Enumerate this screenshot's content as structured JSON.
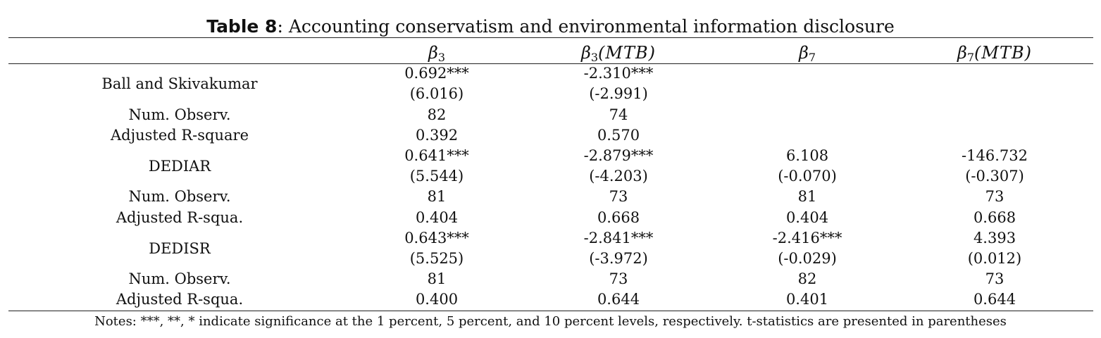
{
  "title": {
    "bold": "Table 8",
    "rest": ": Accounting conservatism and environmental information disclosure"
  },
  "columns": [
    {
      "symbol": "β",
      "sub": "3",
      "suffix": ""
    },
    {
      "symbol": "β",
      "sub": "3",
      "suffix": "(MTB)"
    },
    {
      "symbol": "β",
      "sub": "7",
      "suffix": ""
    },
    {
      "symbol": "β",
      "sub": "7",
      "suffix": "(MTB)"
    }
  ],
  "groups": [
    {
      "name": "Ball and Skivakumar",
      "coef": [
        "0.692***",
        "-2.310***",
        "",
        ""
      ],
      "tstat": [
        "(6.016)",
        "(-2.991)",
        "",
        ""
      ],
      "obs_label": "Num. Observ.",
      "obs": [
        "82",
        "74",
        "",
        ""
      ],
      "r2_label": "Adjusted R-square",
      "r2": [
        "0.392",
        "0.570",
        "",
        ""
      ]
    },
    {
      "name": "DEDIAR",
      "coef": [
        "0.641***",
        "-2.879***",
        "6.108",
        "-146.732"
      ],
      "tstat": [
        "(5.544)",
        "(-4.203)",
        "(-0.070)",
        "(-0.307)"
      ],
      "obs_label": "Num. Observ.",
      "obs": [
        "81",
        "73",
        "81",
        "73"
      ],
      "r2_label": "Adjusted R-squa.",
      "r2": [
        "0.404",
        "0.668",
        "0.404",
        "0.668"
      ]
    },
    {
      "name": "DEDISR",
      "coef": [
        "0.643***",
        "-2.841***",
        "-2.416***",
        "4.393"
      ],
      "tstat": [
        "(5.525)",
        "(-3.972)",
        "(-0.029)",
        "(0.012)"
      ],
      "obs_label": "Num. Observ.",
      "obs": [
        "81",
        "73",
        "82",
        "73"
      ],
      "r2_label": "Adjusted R-squa.",
      "r2": [
        "0.400",
        "0.644",
        "0.401",
        "0.644"
      ]
    }
  ],
  "notes": "Notes: ***, **, * indicate significance at the 1 percent, 5 percent, and 10 percent levels, respectively. t-statistics are presented in parentheses"
}
